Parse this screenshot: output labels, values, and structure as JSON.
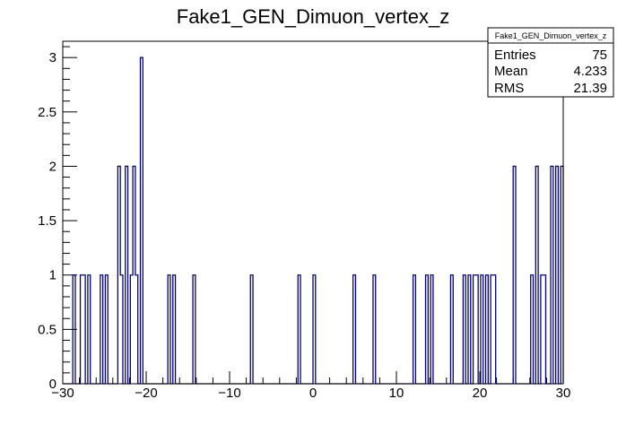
{
  "title": "Fake1_GEN_Dimuon_vertex_z",
  "stats": {
    "name": "Fake1_GEN_Dimuon_vertex_z",
    "rows": [
      {
        "label": "Entries",
        "value": "75"
      },
      {
        "label": "Mean",
        "value": "4.233"
      },
      {
        "label": "RMS",
        "value": "21.39"
      }
    ]
  },
  "chart_data": {
    "type": "histogram",
    "title": "Fake1_GEN_Dimuon_vertex_z",
    "xlabel": "",
    "ylabel": "",
    "xlim": [
      -30,
      30
    ],
    "ylim": [
      0,
      3.15
    ],
    "nbins": 200,
    "line_color": "#000080",
    "x_ticks": [
      -30,
      -20,
      -10,
      0,
      10,
      20,
      30
    ],
    "x_tick_labels": [
      "−30",
      "−20",
      "−10",
      "0",
      "10",
      "20",
      "30"
    ],
    "y_ticks": [
      0,
      0.5,
      1,
      1.5,
      2,
      2.5,
      3
    ],
    "y_tick_labels": [
      "0",
      "0.5",
      "1",
      "1.5",
      "2",
      "2.5",
      "3"
    ],
    "bins": [
      {
        "x": -28.65,
        "y": 1
      },
      {
        "x": -27.75,
        "y": 1
      },
      {
        "x": -27.45,
        "y": 1
      },
      {
        "x": -26.85,
        "y": 1
      },
      {
        "x": -25.35,
        "y": 1
      },
      {
        "x": -24.75,
        "y": 1
      },
      {
        "x": -23.25,
        "y": 2
      },
      {
        "x": -22.95,
        "y": 1
      },
      {
        "x": -22.35,
        "y": 2
      },
      {
        "x": -21.75,
        "y": 1
      },
      {
        "x": -21.45,
        "y": 2
      },
      {
        "x": -21.15,
        "y": 1
      },
      {
        "x": -20.55,
        "y": 3
      },
      {
        "x": -17.25,
        "y": 1
      },
      {
        "x": -16.65,
        "y": 1
      },
      {
        "x": -14.25,
        "y": 1
      },
      {
        "x": -7.35,
        "y": 1
      },
      {
        "x": -1.65,
        "y": 1
      },
      {
        "x": 0.15,
        "y": 1
      },
      {
        "x": 4.95,
        "y": 1
      },
      {
        "x": 7.35,
        "y": 1
      },
      {
        "x": 12.15,
        "y": 1
      },
      {
        "x": 13.65,
        "y": 1
      },
      {
        "x": 14.25,
        "y": 1
      },
      {
        "x": 16.65,
        "y": 1
      },
      {
        "x": 18.15,
        "y": 1
      },
      {
        "x": 18.75,
        "y": 1
      },
      {
        "x": 19.35,
        "y": 1
      },
      {
        "x": 19.65,
        "y": 1
      },
      {
        "x": 20.25,
        "y": 1
      },
      {
        "x": 20.85,
        "y": 1
      },
      {
        "x": 21.45,
        "y": 1
      },
      {
        "x": 21.75,
        "y": 1
      },
      {
        "x": 24.15,
        "y": 2
      },
      {
        "x": 26.25,
        "y": 1
      },
      {
        "x": 26.85,
        "y": 2
      },
      {
        "x": 27.45,
        "y": 1
      },
      {
        "x": 27.75,
        "y": 1
      },
      {
        "x": 28.65,
        "y": 2
      },
      {
        "x": 29.25,
        "y": 2
      },
      {
        "x": 29.85,
        "y": 2
      }
    ]
  }
}
